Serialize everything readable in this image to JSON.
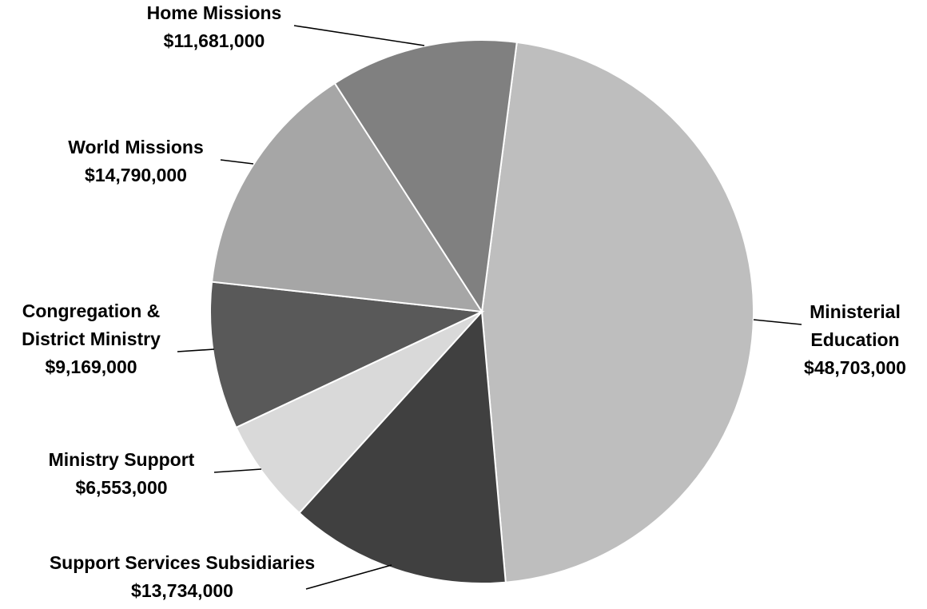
{
  "chart_data": {
    "type": "pie",
    "title": "",
    "legend": "none",
    "labels_position": "outside-with-leader-lines",
    "slices": [
      {
        "name": "Ministerial Education",
        "label_lines": [
          "Ministerial",
          "Education"
        ],
        "value_label": "$48,703,000",
        "value": 48703000,
        "color": "#bebebe"
      },
      {
        "name": "Support Services Subsidiaries",
        "label_lines": [
          "Support Services Subsidiaries"
        ],
        "value_label": "$13,734,000",
        "value": 13734000,
        "color": "#404040"
      },
      {
        "name": "Ministry Support",
        "label_lines": [
          "Ministry Support"
        ],
        "value_label": "$6,553,000",
        "value": 6553000,
        "color": "#d9d9d9"
      },
      {
        "name": "Congregation & District Ministry",
        "label_lines": [
          "Congregation &",
          "District Ministry"
        ],
        "value_label": "$9,169,000",
        "value": 9169000,
        "color": "#595959"
      },
      {
        "name": "World Missions",
        "label_lines": [
          "World Missions"
        ],
        "value_label": "$14,790,000",
        "value": 14790000,
        "color": "#a6a6a6"
      },
      {
        "name": "Home Missions",
        "label_lines": [
          "Home Missions"
        ],
        "value_label": "$11,681,000",
        "value": 11681000,
        "color": "#808080"
      }
    ]
  }
}
